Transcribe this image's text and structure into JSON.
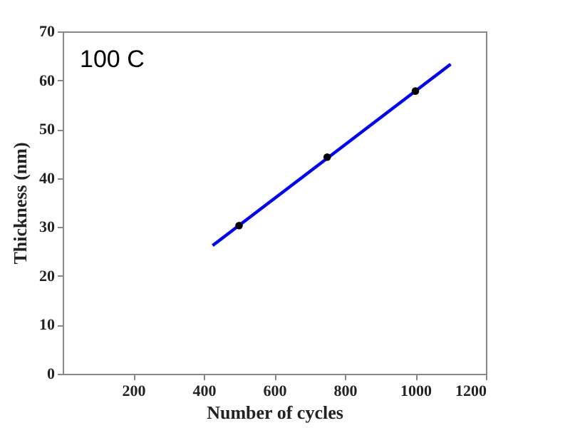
{
  "chart_data": {
    "type": "scatter",
    "xlabel": "Number of cycles",
    "ylabel": "Thickness (nm)",
    "annotations": [
      "100 C"
    ],
    "xlim": [
      0,
      1200
    ],
    "xticks": [
      200,
      400,
      600,
      800,
      1000,
      1200
    ],
    "ylim": [
      0,
      70
    ],
    "yticks": [
      0,
      10,
      20,
      30,
      40,
      50,
      60,
      70
    ],
    "grid": false,
    "series": [
      {
        "color": "#000000",
        "marker": "circle",
        "x": [
          500,
          750,
          1000
        ],
        "values": [
          30.3,
          44.3,
          57.8
        ]
      },
      {
        "type": "line",
        "color": "#0000ff",
        "line_style": "solid",
        "x": [
          425,
          1100
        ],
        "values": [
          26.2,
          63.3
        ]
      }
    ]
  }
}
